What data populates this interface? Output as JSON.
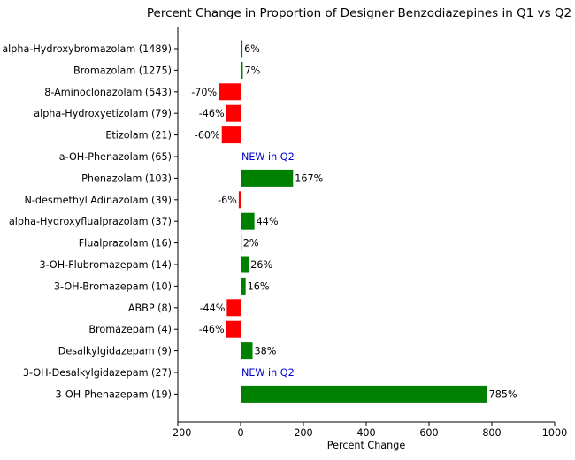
{
  "chart_data": {
    "type": "bar",
    "orientation": "horizontal",
    "title": "Percent Change in Proportion of Designer Benzodiazepines in Q1 vs Q2",
    "xlabel": "Percent Change",
    "ylabel": "",
    "xlim": [
      -200,
      1000
    ],
    "xticks": [
      -200,
      0,
      200,
      400,
      600,
      800,
      1000
    ],
    "xtick_labels": [
      "−200",
      "0",
      "200",
      "400",
      "600",
      "800",
      "1000"
    ],
    "grid": false,
    "new_label": "NEW in Q2",
    "colors": {
      "positive": "#008000",
      "negative": "#ff0000",
      "new_text": "#0000cc"
    },
    "categories": [
      "alpha-Hydroxybromazolam (1489)",
      "Bromazolam (1275)",
      "8-Aminoclonazolam (543)",
      "alpha-Hydroxyetizolam (79)",
      "Etizolam (21)",
      "a-OH-Phenazolam (65)",
      "Phenazolam (103)",
      "N-desmethyl Adinazolam (39)",
      "alpha-Hydroxyflualprazolam (37)",
      "Flualprazolam (16)",
      "3-OH-Flubromazepam (14)",
      "3-OH-Bromazepam (10)",
      "ABBP (8)",
      "Bromazepam (4)",
      "Desalkylgidazepam (9)",
      "3-OH-Desalkylgidazepam (27)",
      "3-OH-Phenazepam (19)"
    ],
    "values": [
      6,
      7,
      -70,
      -46,
      -60,
      null,
      167,
      -6,
      44,
      2,
      26,
      16,
      -44,
      -46,
      38,
      null,
      785
    ],
    "data_labels": [
      "6%",
      "7%",
      "-70%",
      "-46%",
      "-60%",
      "NEW in Q2",
      "167%",
      "-6%",
      "44%",
      "2%",
      "26%",
      "16%",
      "-44%",
      "-46%",
      "38%",
      "NEW in Q2",
      "785%"
    ]
  }
}
